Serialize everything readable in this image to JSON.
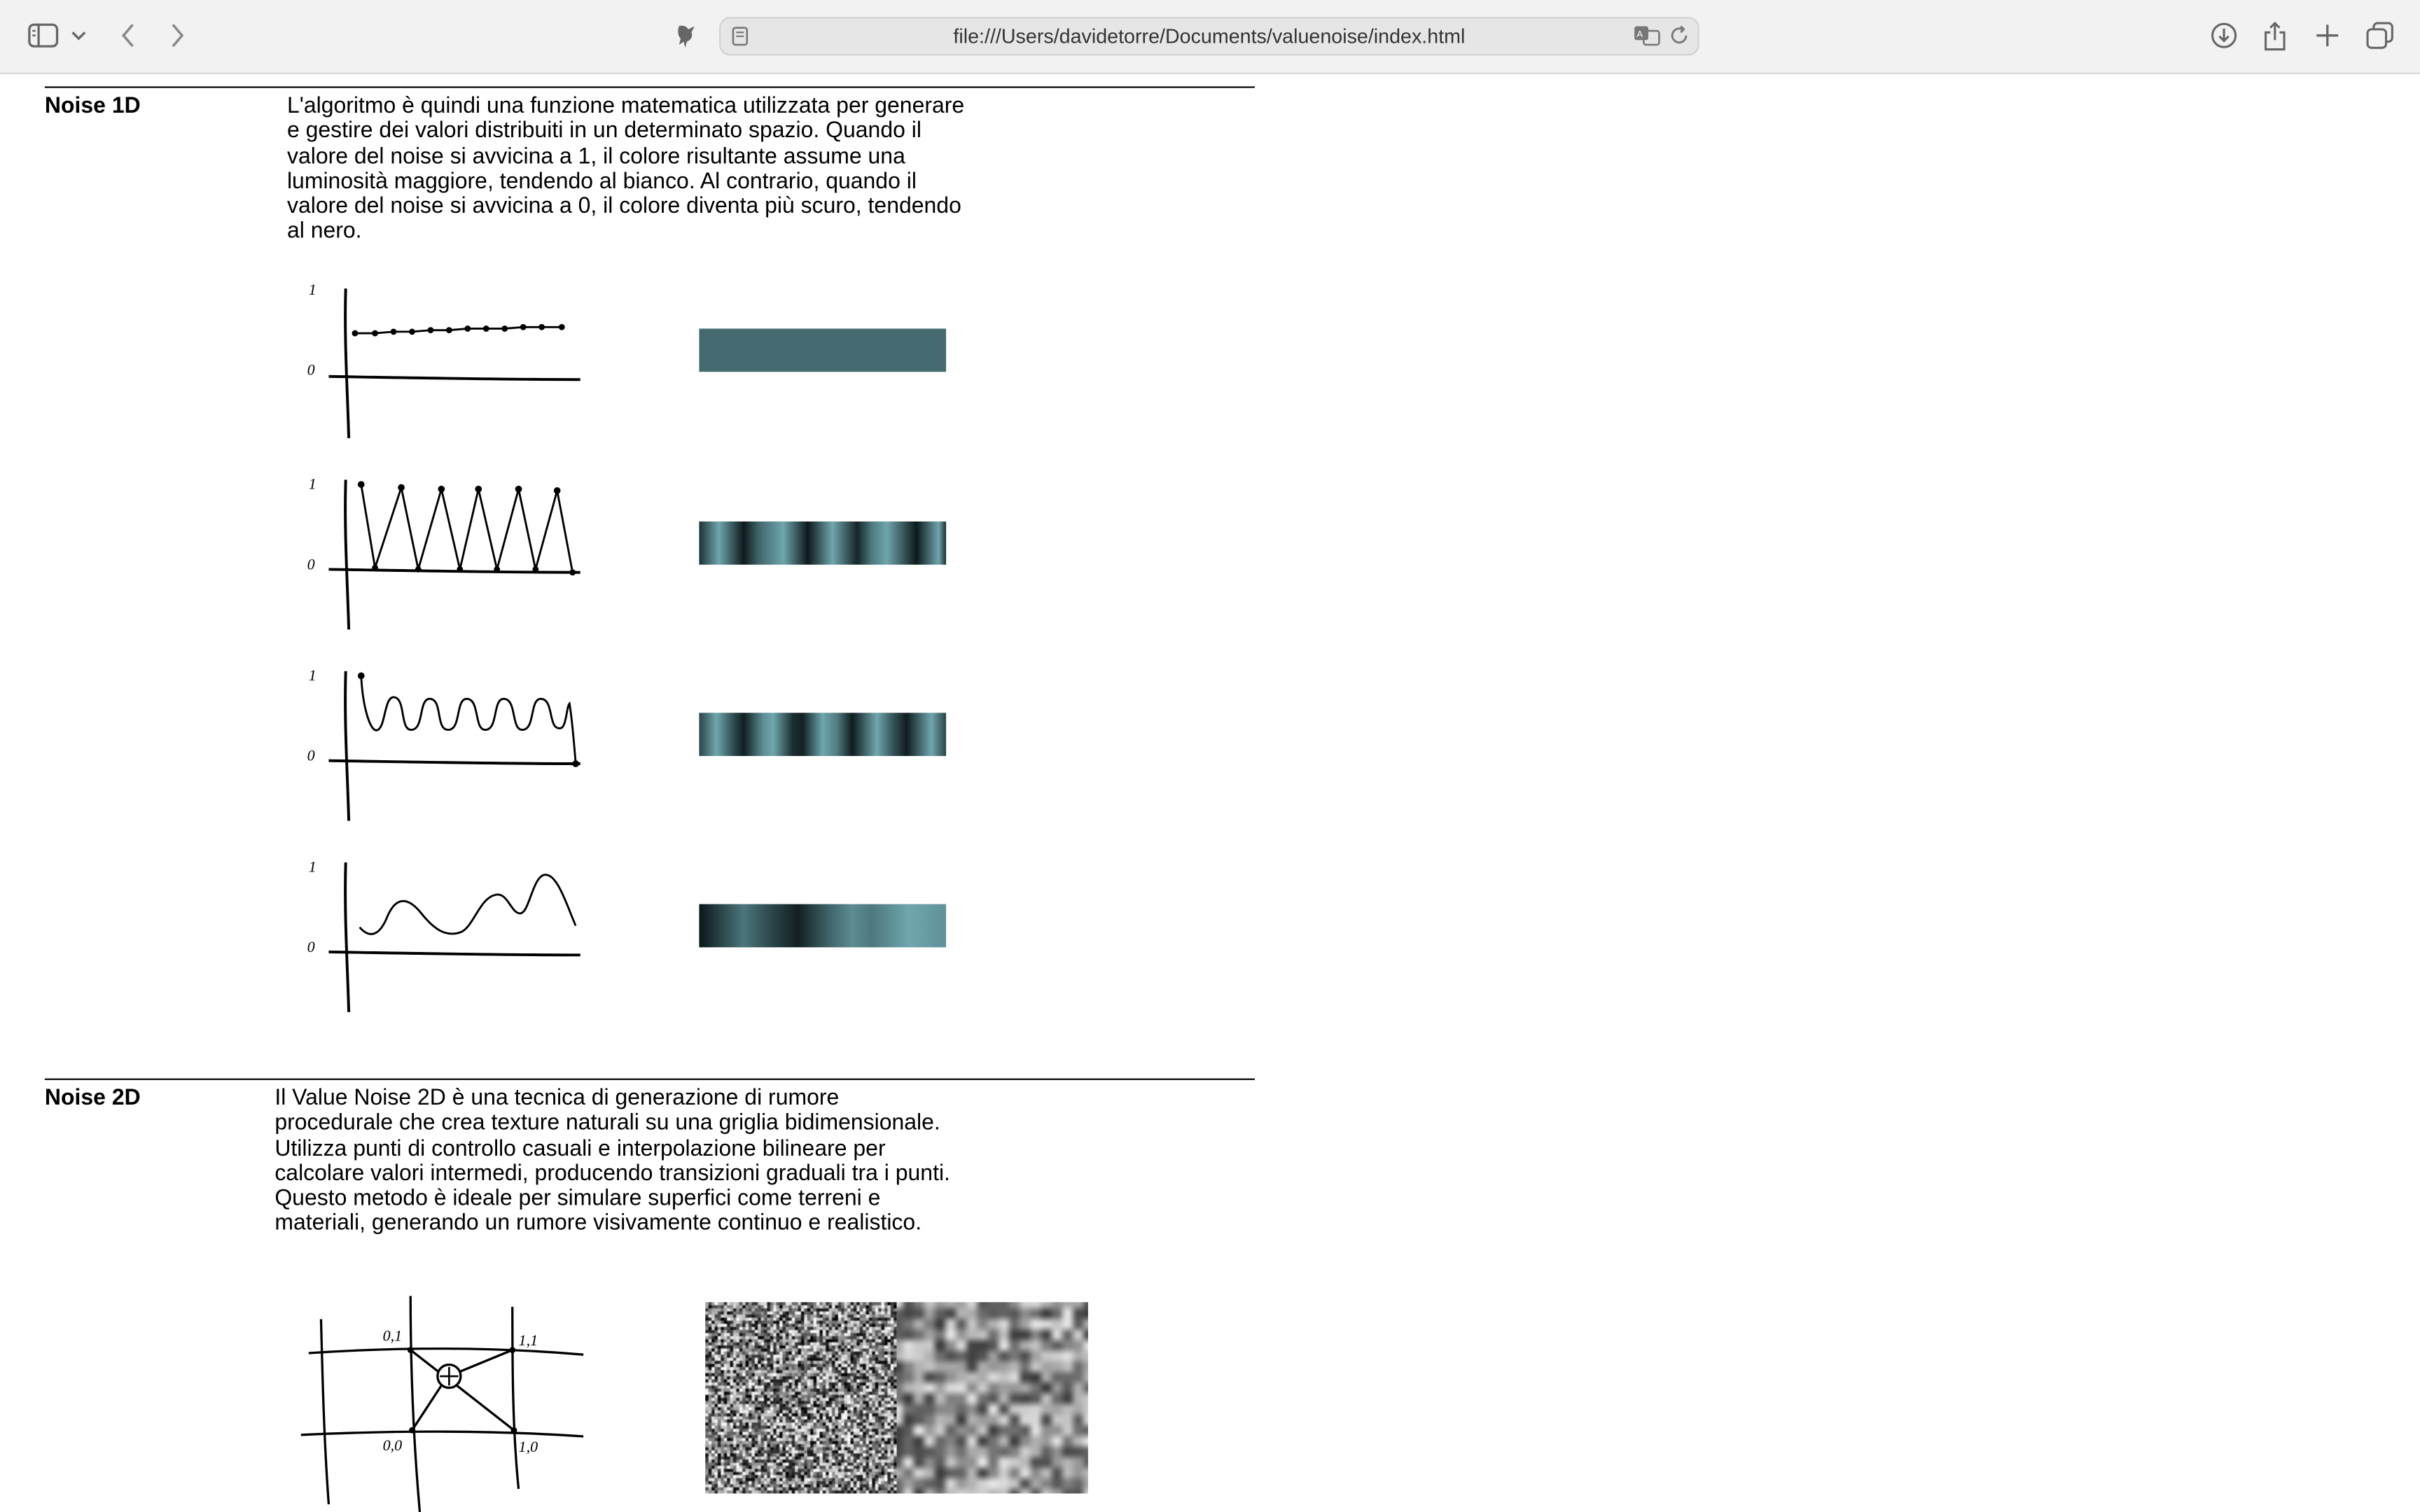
{
  "browser": {
    "url": "file:///Users/davidetorre/Documents/valuenoise/index.html",
    "icons": [
      "sidebar-icon",
      "chevron-down-icon",
      "back-icon",
      "forward-icon",
      "extensions-icon",
      "page-icon",
      "translate-icon",
      "reload-icon",
      "download-icon",
      "share-icon",
      "new-tab-icon",
      "tabs-overview-icon"
    ]
  },
  "sections": {
    "noise1d": {
      "title": "Noise 1D",
      "text": "L'algoritmo è quindi una funzione matematica utilizzata per generare e gestire dei valori distribuiti in un determinato spazio. Quando il valore del noise si avvicina a 1, il colore risultante assume una luminosità maggiore, tendendo al bianco. Al contrario, quando il valore del noise si avvicina a 0, il colore diventa più scuro, tendendo al nero.",
      "graphs": [
        {
          "label_top": "1",
          "label_zero": "0"
        },
        {
          "label_top": "1",
          "label_zero": "0"
        },
        {
          "label_top": "1",
          "label_zero": "0"
        },
        {
          "label_top": "1",
          "label_zero": "0"
        }
      ]
    },
    "noise2d": {
      "title": "Noise 2D",
      "text": "Il Value Noise 2D è una tecnica di generazione di rumore procedurale che crea texture naturali su una griglia bidimensionale. Utilizza punti di controllo casuali e interpolazione bilineare per calcolare valori intermedi, producendo transizioni graduali tra i punti. Questo metodo è ideale per simulare superfici come terreni e materiali, generando un rumore visivamente continuo e realistico.",
      "grid_labels": {
        "tl": "0,1",
        "tr": "1,1",
        "bl": "0,0",
        "br": "1,0"
      }
    }
  },
  "colors": {
    "teal_flat": "#456b70",
    "teal_light": "#6fa6ae",
    "dark": "#0a1416"
  }
}
